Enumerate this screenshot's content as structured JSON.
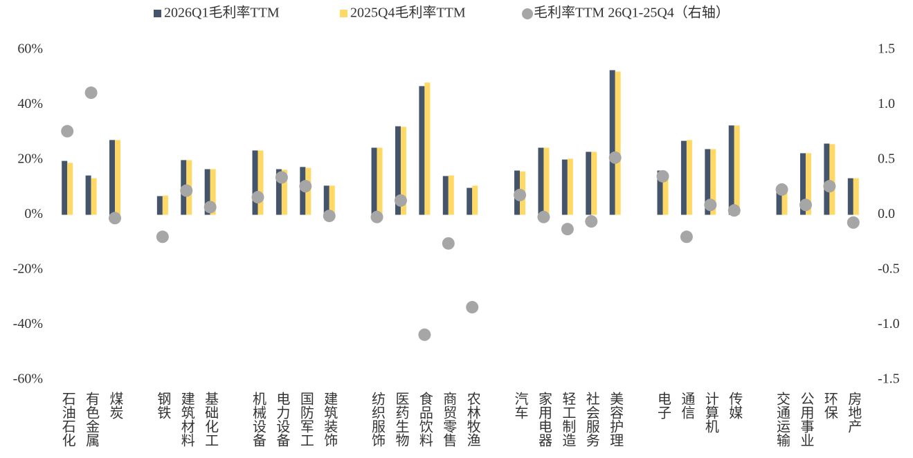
{
  "chart_data": {
    "type": "bar",
    "categories": [
      "石油石化",
      "有色金属",
      "煤炭",
      null,
      "钢铁",
      "建筑材料",
      "基础化工",
      null,
      "机械设备",
      "电力设备",
      "国防军工",
      "建筑装饰",
      null,
      "纺织服饰",
      "医药生物",
      "食品饮料",
      "商贸零售",
      "农林牧渔",
      null,
      "汽车",
      "家用电器",
      "轻工制造",
      "社会服务",
      "美容护理",
      null,
      "电子",
      "通信",
      "计算机",
      "传媒",
      null,
      "交通运输",
      "公用事业",
      "环保",
      "房地产"
    ],
    "series": [
      {
        "name": "2026Q1毛利率TTM",
        "color": "#44546a",
        "values": [
          19.6,
          14.3,
          27.2,
          null,
          6.8,
          19.9,
          16.6,
          null,
          23.4,
          16.6,
          17.4,
          10.6,
          null,
          24.4,
          32.2,
          46.8,
          14.1,
          9.8,
          null,
          16.1,
          24.4,
          20.1,
          22.9,
          52.6,
          null,
          16.1,
          26.9,
          23.9,
          32.5,
          null,
          10.1,
          22.4,
          25.9,
          13.3
        ]
      },
      {
        "name": "2025Q4毛利率TTM",
        "color": "#ffd966",
        "values": [
          18.9,
          13.3,
          27.2,
          null,
          7.0,
          19.9,
          16.6,
          null,
          23.4,
          16.4,
          17.1,
          10.6,
          null,
          24.4,
          32.0,
          48.1,
          14.3,
          10.6,
          null,
          15.8,
          24.4,
          20.4,
          22.9,
          52.1,
          null,
          15.1,
          27.2,
          23.9,
          32.5,
          null,
          8.8,
          22.4,
          25.7,
          13.3
        ]
      },
      {
        "name": "毛利率TTM 26Q1-25Q4（右轴）",
        "color": "#a6a6a6",
        "axis": "y2",
        "values": [
          0.76,
          1.11,
          -0.03,
          null,
          -0.2,
          0.22,
          0.07,
          null,
          0.16,
          0.34,
          0.26,
          -0.01,
          null,
          -0.02,
          0.13,
          -1.09,
          -0.26,
          -0.84,
          null,
          0.18,
          -0.02,
          -0.13,
          -0.06,
          0.52,
          null,
          0.35,
          -0.2,
          0.09,
          0.04,
          null,
          0.23,
          0.09,
          0.26,
          -0.07
        ]
      }
    ],
    "ylim": [
      -60,
      60
    ],
    "yticks": [
      {
        "value": -60,
        "label": "-60%"
      },
      {
        "value": -40,
        "label": "-40%"
      },
      {
        "value": -20,
        "label": "-20%"
      },
      {
        "value": 0,
        "label": "0%"
      },
      {
        "value": 20,
        "label": "20%"
      },
      {
        "value": 40,
        "label": "40%"
      },
      {
        "value": 60,
        "label": "60%"
      }
    ],
    "y2lim": [
      -1.5,
      1.5
    ],
    "y2ticks": [
      -1.5,
      {
        "value": -1.0,
        "label": "-1.0"
      },
      -0.5,
      {
        "value": 0,
        "label": "0.0"
      },
      0.5,
      {
        "value": 1.0,
        "label": "1.0"
      },
      1.5
    ],
    "legend": "top",
    "grid": false
  }
}
